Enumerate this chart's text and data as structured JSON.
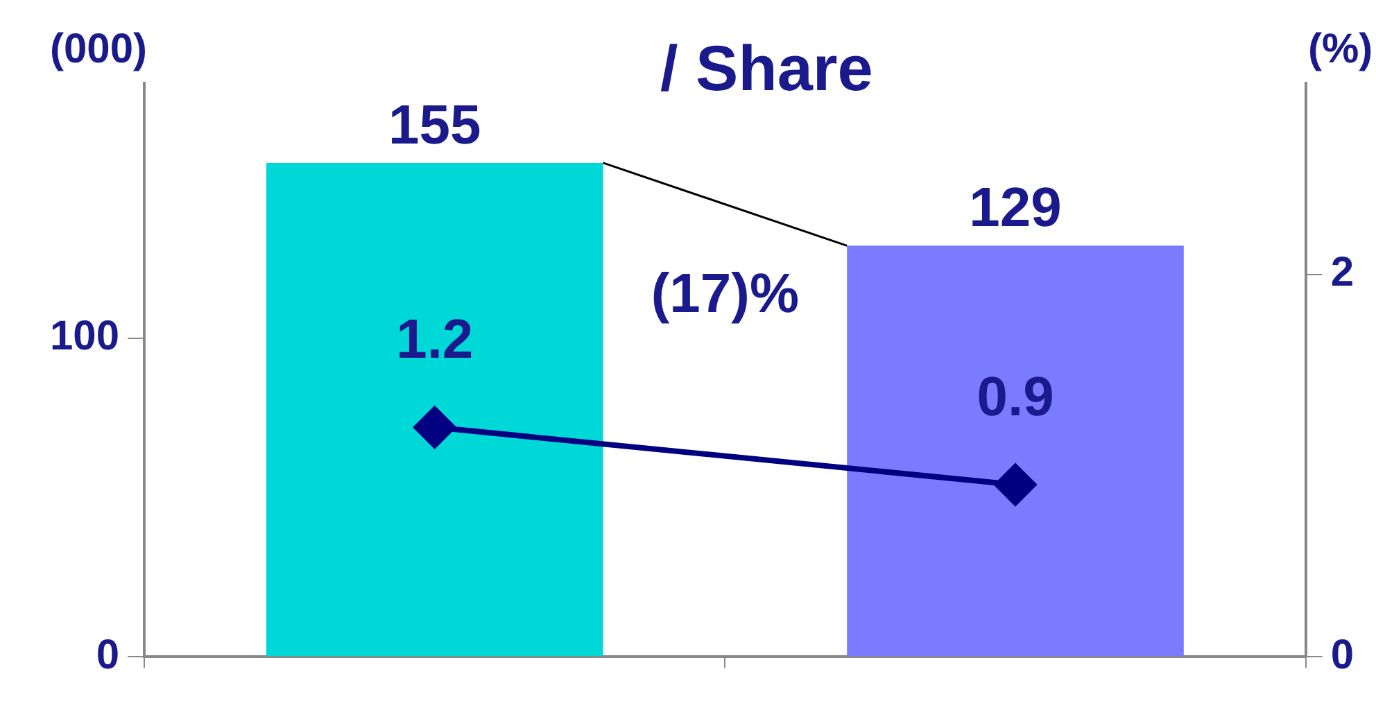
{
  "chart_data": {
    "type": "bar",
    "title": "/ Share",
    "ylabel": "(000)",
    "y2label": "(%)",
    "categories": [
      null,
      null
    ],
    "series": [
      {
        "colors": [
          "#00d8d8",
          "#7b7bff"
        ],
        "values": [
          155,
          129
        ]
      },
      {
        "type": "line",
        "axis": "y2",
        "color": "#000080",
        "values": [
          1.2,
          0.9
        ]
      }
    ],
    "ylim": [
      0,
      180
    ],
    "yticks": [
      0,
      100
    ],
    "y2lim": [
      0,
      3
    ],
    "y2ticks": [
      0,
      2
    ],
    "annotations": [
      "(17)%"
    ],
    "data_labels": true,
    "grid": false,
    "legend": false,
    "marker": "diamond",
    "line_style": "solid"
  }
}
